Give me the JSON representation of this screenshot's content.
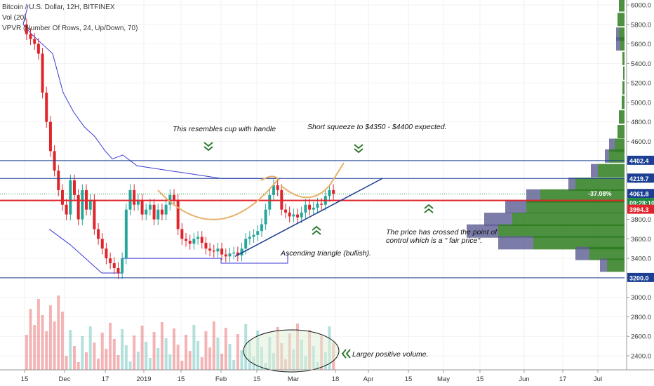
{
  "chart_data": {
    "type": "candlestick",
    "legend": {
      "line1": "Bitcoin / U.S. Dollar, 12H, BITFINEX",
      "line2": "Vol (20)",
      "line3": "VPVR (Number Of Rows, 24, Up/Down, 70)"
    },
    "yaxis": {
      "ticks": [
        6000,
        5800,
        5600,
        5400,
        5200,
        5000,
        4800,
        4600,
        4400,
        4200,
        4000,
        3800,
        3600,
        3400,
        3200,
        3000,
        2800,
        2600,
        2400
      ],
      "tick_labels": [
        "6000.0",
        "5800.0",
        "5600.0",
        "5400.0",
        "5200.0",
        "5000.0",
        "4800.0",
        "4600.0",
        "4400.0",
        "4200.0",
        "4000.0",
        "3800.0",
        "3600.0",
        "3400.0",
        "3200.0",
        "3000.0",
        "2800.0",
        "2600.0",
        "2400.0"
      ]
    },
    "xaxis": {
      "tick_labels": [
        "15",
        "Dec",
        "17",
        "2019",
        "15",
        "Feb",
        "15",
        "Mar",
        "18",
        "Apr",
        "15",
        "May",
        "15",
        "Jun",
        "17",
        "Jul"
      ]
    },
    "price_tags": [
      {
        "text": "4402.4",
        "color": "#1c3f94"
      },
      {
        "text": "4219.7",
        "color": "#1c3f94"
      },
      {
        "text": "4061.8",
        "color": "#1c3f94"
      },
      {
        "text": "09:28:10",
        "color": "#1b8a3d"
      },
      {
        "text": "3994.3",
        "color": "#e0242b"
      },
      {
        "text": "3200.0",
        "color": "#1c3f94"
      }
    ],
    "percent_label": "-37.08%",
    "horizontal_lines": [
      {
        "price": 4402.4,
        "color": "#1c3f94"
      },
      {
        "price": 4219.7,
        "color": "#1c3f94"
      },
      {
        "price": 4061.8,
        "color": "#2a9d4a",
        "style": "dotted"
      },
      {
        "price": 3994.3,
        "color": "#e0242b"
      },
      {
        "price": 3200.0,
        "color": "#1c3f94"
      }
    ],
    "annotations": {
      "cup": "This resembles cup with handle",
      "squeeze": "Short squeeze to $4350 - $4400 expected.",
      "poc_line1": "The price has crossed the point of",
      "poc_line2": "control which is a \" fair price\".",
      "triangle": "Ascending triangle (bullish).",
      "volume": "Larger positive volume."
    },
    "close_series": [
      5700,
      5650,
      5600,
      5500,
      5100,
      4800,
      4500,
      4300,
      4100,
      3950,
      3850,
      4200,
      4050,
      3800,
      4100,
      3900,
      4000,
      3700,
      3600,
      3500,
      3400,
      3350,
      3300,
      3250,
      3400,
      3900,
      4100,
      3950,
      4000,
      3850,
      3900,
      3950,
      3800,
      3900,
      3850,
      3950,
      4050,
      4000,
      3700,
      3600,
      3580,
      3550,
      3600,
      3620,
      3560,
      3500,
      3480,
      3470,
      3500,
      3440,
      3420,
      3450,
      3460,
      3430,
      3500,
      3600,
      3620,
      3640,
      3680,
      3750,
      3900,
      4050,
      4150,
      4100,
      3900,
      3870,
      3830,
      3850,
      3820,
      3870,
      3950,
      3900,
      3920,
      3960,
      3950,
      4040,
      4100,
      4061
    ],
    "colors": {
      "up": "#26a69a",
      "down": "#e0242b",
      "vwap_line": "#3a3ad6",
      "vpvr_up": "#2e7d1f",
      "vpvr_down": "#5b5b93",
      "arrow": "#2d7a2d",
      "curve": "#e8b06a"
    }
  }
}
